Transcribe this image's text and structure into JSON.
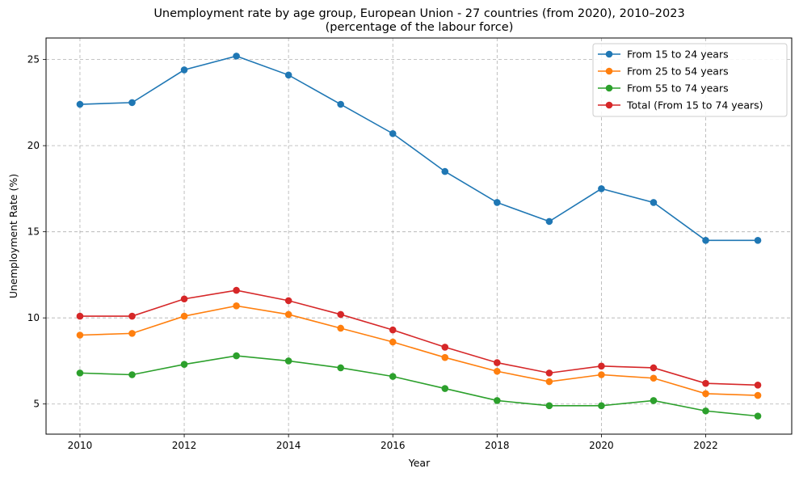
{
  "chart_data": {
    "type": "line",
    "title_line1": "Unemployment rate by age group, European Union - 27 countries (from 2020), 2010–2023",
    "title_line2": "(percentage of the labour force)",
    "xlabel": "Year",
    "ylabel": "Unemployment Rate (%)",
    "x": [
      2010,
      2011,
      2012,
      2013,
      2014,
      2015,
      2016,
      2017,
      2018,
      2019,
      2020,
      2021,
      2022,
      2023
    ],
    "xticks": [
      2010,
      2012,
      2014,
      2016,
      2018,
      2020,
      2022
    ],
    "yticks": [
      5,
      10,
      15,
      20,
      25
    ],
    "xlim": [
      2009.35,
      2023.65
    ],
    "ylim": [
      3.25,
      26.25
    ],
    "grid": true,
    "legend_position": "top-right",
    "series": [
      {
        "name": "From 15 to 24 years",
        "color": "#1f77b4",
        "values": [
          22.4,
          22.5,
          24.4,
          25.2,
          24.1,
          22.4,
          20.7,
          18.5,
          16.7,
          15.6,
          17.5,
          16.7,
          14.5,
          14.5
        ]
      },
      {
        "name": "From 25 to 54 years",
        "color": "#ff7f0e",
        "values": [
          9.0,
          9.1,
          10.1,
          10.7,
          10.2,
          9.4,
          8.6,
          7.7,
          6.9,
          6.3,
          6.7,
          6.5,
          5.6,
          5.5
        ]
      },
      {
        "name": "From 55 to 74 years",
        "color": "#2ca02c",
        "values": [
          6.8,
          6.7,
          7.3,
          7.8,
          7.5,
          7.1,
          6.6,
          5.9,
          5.2,
          4.9,
          4.9,
          5.2,
          4.6,
          4.3
        ]
      },
      {
        "name": "Total (From 15 to 74 years)",
        "color": "#d62728",
        "values": [
          10.1,
          10.1,
          11.1,
          11.6,
          11.0,
          10.2,
          9.3,
          8.3,
          7.4,
          6.8,
          7.2,
          7.1,
          6.2,
          6.1
        ]
      }
    ]
  }
}
